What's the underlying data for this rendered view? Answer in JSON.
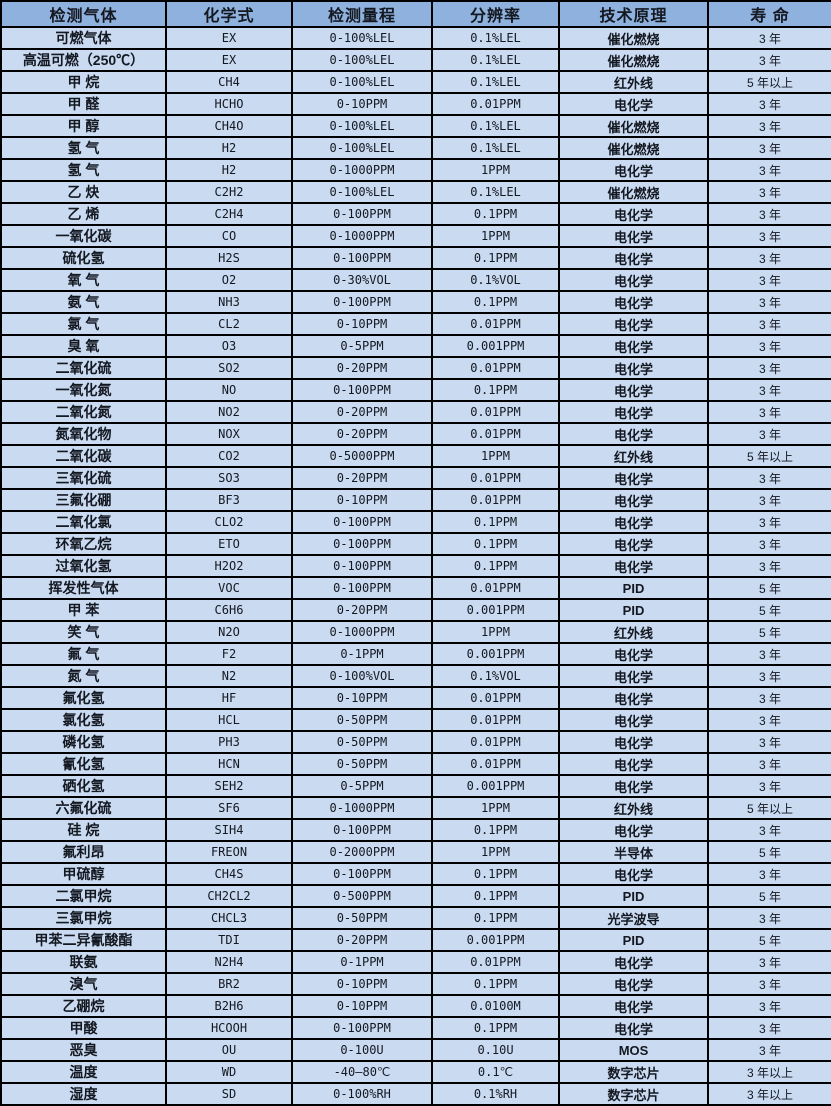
{
  "table": {
    "colors": {
      "header_bg": "#8fb1dd",
      "row_bg": "#c9daf1",
      "border": "#000000",
      "text": "#141821"
    },
    "columns": [
      {
        "key": "gas",
        "label": "检测气体"
      },
      {
        "key": "formula",
        "label": "化学式"
      },
      {
        "key": "range",
        "label": "检测量程"
      },
      {
        "key": "resolution",
        "label": "分辨率"
      },
      {
        "key": "principle",
        "label": "技术原理"
      },
      {
        "key": "lifespan",
        "label": "寿 命"
      }
    ],
    "rows": [
      {
        "gas": "可燃气体",
        "formula": "EX",
        "range": "0-100%LEL",
        "resolution": "0.1%LEL",
        "principle": "催化燃烧",
        "lifespan": "3 年"
      },
      {
        "gas": "高温可燃（250℃）",
        "formula": "EX",
        "range": "0-100%LEL",
        "resolution": "0.1%LEL",
        "principle": "催化燃烧",
        "lifespan": "3 年"
      },
      {
        "gas": "甲 烷",
        "formula": "CH4",
        "range": "0-100%LEL",
        "resolution": "0.1%LEL",
        "principle": "红外线",
        "lifespan": "5 年以上"
      },
      {
        "gas": "甲 醛",
        "formula": "HCHO",
        "range": "0-10PPM",
        "resolution": "0.01PPM",
        "principle": "电化学",
        "lifespan": "3 年"
      },
      {
        "gas": "甲 醇",
        "formula": "CH4O",
        "range": "0-100%LEL",
        "resolution": "0.1%LEL",
        "principle": "催化燃烧",
        "lifespan": "3 年"
      },
      {
        "gas": "氢 气",
        "formula": "H2",
        "range": "0-100%LEL",
        "resolution": "0.1%LEL",
        "principle": "催化燃烧",
        "lifespan": "3 年"
      },
      {
        "gas": "氢 气",
        "formula": "H2",
        "range": "0-1000PPM",
        "resolution": "1PPM",
        "principle": "电化学",
        "lifespan": "3 年"
      },
      {
        "gas": "乙 炔",
        "formula": "C2H2",
        "range": "0-100%LEL",
        "resolution": "0.1%LEL",
        "principle": "催化燃烧",
        "lifespan": "3 年"
      },
      {
        "gas": "乙 烯",
        "formula": "C2H4",
        "range": "0-100PPM",
        "resolution": "0.1PPM",
        "principle": "电化学",
        "lifespan": "3 年"
      },
      {
        "gas": "一氧化碳",
        "formula": "CO",
        "range": "0-1000PPM",
        "resolution": "1PPM",
        "principle": "电化学",
        "lifespan": "3 年"
      },
      {
        "gas": "硫化氢",
        "formula": "H2S",
        "range": "0-100PPM",
        "resolution": "0.1PPM",
        "principle": "电化学",
        "lifespan": "3 年"
      },
      {
        "gas": "氧 气",
        "formula": "O2",
        "range": "0-30%VOL",
        "resolution": "0.1%VOL",
        "principle": "电化学",
        "lifespan": "3 年"
      },
      {
        "gas": "氨 气",
        "formula": "NH3",
        "range": "0-100PPM",
        "resolution": "0.1PPM",
        "principle": "电化学",
        "lifespan": "3 年"
      },
      {
        "gas": "氯 气",
        "formula": "CL2",
        "range": "0-10PPM",
        "resolution": "0.01PPM",
        "principle": "电化学",
        "lifespan": "3 年"
      },
      {
        "gas": "臭 氧",
        "formula": "O3",
        "range": "0-5PPM",
        "resolution": "0.001PPM",
        "principle": "电化学",
        "lifespan": "3 年"
      },
      {
        "gas": "二氧化硫",
        "formula": "SO2",
        "range": "0-20PPM",
        "resolution": "0.01PPM",
        "principle": "电化学",
        "lifespan": "3 年"
      },
      {
        "gas": "一氧化氮",
        "formula": "NO",
        "range": "0-100PPM",
        "resolution": "0.1PPM",
        "principle": "电化学",
        "lifespan": "3 年"
      },
      {
        "gas": "二氧化氮",
        "formula": "NO2",
        "range": "0-20PPM",
        "resolution": "0.01PPM",
        "principle": "电化学",
        "lifespan": "3 年"
      },
      {
        "gas": "氮氧化物",
        "formula": "NOX",
        "range": "0-20PPM",
        "resolution": "0.01PPM",
        "principle": "电化学",
        "lifespan": "3 年"
      },
      {
        "gas": "二氧化碳",
        "formula": "CO2",
        "range": "0-5000PPM",
        "resolution": "1PPM",
        "principle": "红外线",
        "lifespan": "5 年以上"
      },
      {
        "gas": "三氧化硫",
        "formula": "SO3",
        "range": "0-20PPM",
        "resolution": "0.01PPM",
        "principle": "电化学",
        "lifespan": "3 年"
      },
      {
        "gas": "三氟化硼",
        "formula": "BF3",
        "range": "0-10PPM",
        "resolution": "0.01PPM",
        "principle": "电化学",
        "lifespan": "3 年"
      },
      {
        "gas": "二氧化氯",
        "formula": "CLO2",
        "range": "0-100PPM",
        "resolution": "0.1PPM",
        "principle": "电化学",
        "lifespan": "3 年"
      },
      {
        "gas": "环氧乙烷",
        "formula": "ETO",
        "range": "0-100PPM",
        "resolution": "0.1PPM",
        "principle": "电化学",
        "lifespan": "3 年"
      },
      {
        "gas": "过氧化氢",
        "formula": "H2O2",
        "range": "0-100PPM",
        "resolution": "0.1PPM",
        "principle": "电化学",
        "lifespan": "3 年"
      },
      {
        "gas": "挥发性气体",
        "formula": "VOC",
        "range": "0-100PPM",
        "resolution": "0.01PPM",
        "principle": "PID",
        "lifespan": "5 年"
      },
      {
        "gas": "甲 苯",
        "formula": "C6H6",
        "range": "0-20PPM",
        "resolution": "0.001PPM",
        "principle": "PID",
        "lifespan": "5 年"
      },
      {
        "gas": "笑 气",
        "formula": "N2O",
        "range": "0-1000PPM",
        "resolution": "1PPM",
        "principle": "红外线",
        "lifespan": "5 年"
      },
      {
        "gas": "氟 气",
        "formula": "F2",
        "range": "0-1PPM",
        "resolution": "0.001PPM",
        "principle": "电化学",
        "lifespan": "3 年"
      },
      {
        "gas": "氮 气",
        "formula": "N2",
        "range": "0-100%VOL",
        "resolution": "0.1%VOL",
        "principle": "电化学",
        "lifespan": "3 年"
      },
      {
        "gas": "氟化氢",
        "formula": "HF",
        "range": "0-10PPM",
        "resolution": "0.01PPM",
        "principle": "电化学",
        "lifespan": "3 年"
      },
      {
        "gas": "氯化氢",
        "formula": "HCL",
        "range": "0-50PPM",
        "resolution": "0.01PPM",
        "principle": "电化学",
        "lifespan": "3 年"
      },
      {
        "gas": "磷化氢",
        "formula": "PH3",
        "range": "0-50PPM",
        "resolution": "0.01PPM",
        "principle": "电化学",
        "lifespan": "3 年"
      },
      {
        "gas": "氰化氢",
        "formula": "HCN",
        "range": "0-50PPM",
        "resolution": "0.01PPM",
        "principle": "电化学",
        "lifespan": "3 年"
      },
      {
        "gas": "硒化氢",
        "formula": "SEH2",
        "range": "0-5PPM",
        "resolution": "0.001PPM",
        "principle": "电化学",
        "lifespan": "3 年"
      },
      {
        "gas": "六氟化硫",
        "formula": "SF6",
        "range": "0-1000PPM",
        "resolution": "1PPM",
        "principle": "红外线",
        "lifespan": "5 年以上"
      },
      {
        "gas": "硅 烷",
        "formula": "SIH4",
        "range": "0-100PPM",
        "resolution": "0.1PPM",
        "principle": "电化学",
        "lifespan": "3 年"
      },
      {
        "gas": "氟利昂",
        "formula": "FREON",
        "range": "0-2000PPM",
        "resolution": "1PPM",
        "principle": "半导体",
        "lifespan": "5 年"
      },
      {
        "gas": "甲硫醇",
        "formula": "CH4S",
        "range": "0-100PPM",
        "resolution": "0.1PPM",
        "principle": "电化学",
        "lifespan": "3 年"
      },
      {
        "gas": "二氯甲烷",
        "formula": "CH2CL2",
        "range": "0-500PPM",
        "resolution": "0.1PPM",
        "principle": "PID",
        "lifespan": "5 年"
      },
      {
        "gas": "三氯甲烷",
        "formula": "CHCL3",
        "range": "0-50PPM",
        "resolution": "0.1PPM",
        "principle": "光学波导",
        "lifespan": "3 年"
      },
      {
        "gas": "甲苯二异氰酸酯",
        "formula": "TDI",
        "range": "0-20PPM",
        "resolution": "0.001PPM",
        "principle": "PID",
        "lifespan": "5 年"
      },
      {
        "gas": "联氨",
        "formula": "N2H4",
        "range": "0-1PPM",
        "resolution": "0.01PPM",
        "principle": "电化学",
        "lifespan": "3 年"
      },
      {
        "gas": "溴气",
        "formula": "BR2",
        "range": "0-10PPM",
        "resolution": "0.1PPM",
        "principle": "电化学",
        "lifespan": "3 年"
      },
      {
        "gas": "乙硼烷",
        "formula": "B2H6",
        "range": "0-10PPM",
        "resolution": "0.0100M",
        "principle": "电化学",
        "lifespan": "3 年"
      },
      {
        "gas": "甲酸",
        "formula": "HCOOH",
        "range": "0-100PPM",
        "resolution": "0.1PPM",
        "principle": "电化学",
        "lifespan": "3 年"
      },
      {
        "gas": "恶臭",
        "formula": "OU",
        "range": "0-100U",
        "resolution": "0.10U",
        "principle": "MOS",
        "lifespan": "3 年"
      },
      {
        "gas": "温度",
        "formula": "WD",
        "range": "-40—80℃",
        "resolution": "0.1℃",
        "principle": "数字芯片",
        "lifespan": "3 年以上"
      },
      {
        "gas": "湿度",
        "formula": "SD",
        "range": "0-100%RH",
        "resolution": "0.1%RH",
        "principle": "数字芯片",
        "lifespan": "3 年以上"
      }
    ]
  }
}
